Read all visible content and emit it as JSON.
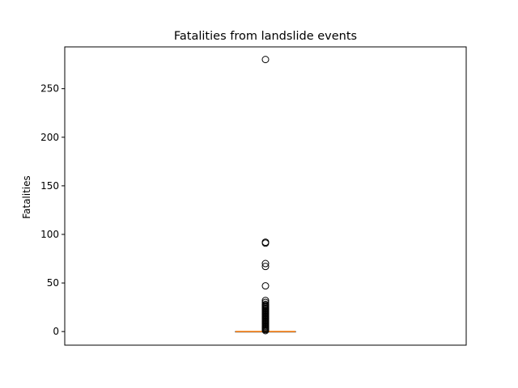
{
  "chart_data": {
    "type": "box",
    "title": "Fatalities from landslide events",
    "xlabel": "",
    "ylabel": "Fatalities",
    "ylim": [
      -14,
      293
    ],
    "yticks": [
      0,
      50,
      100,
      150,
      200,
      250
    ],
    "grid": false,
    "box": {
      "min": 0,
      "q1": 0,
      "median": 0,
      "q3": 0,
      "max": 0
    },
    "outliers": [
      1,
      2,
      3,
      4,
      5,
      6,
      7,
      8,
      9,
      10,
      11,
      12,
      13,
      14,
      15,
      16,
      17,
      18,
      19,
      20,
      21,
      22,
      23,
      24,
      25,
      26,
      27,
      28,
      30,
      32,
      47,
      67,
      70,
      91,
      92,
      280
    ],
    "colors": {
      "box": "#000000",
      "median": "#ff7f0e",
      "outlier": "#000000"
    }
  }
}
